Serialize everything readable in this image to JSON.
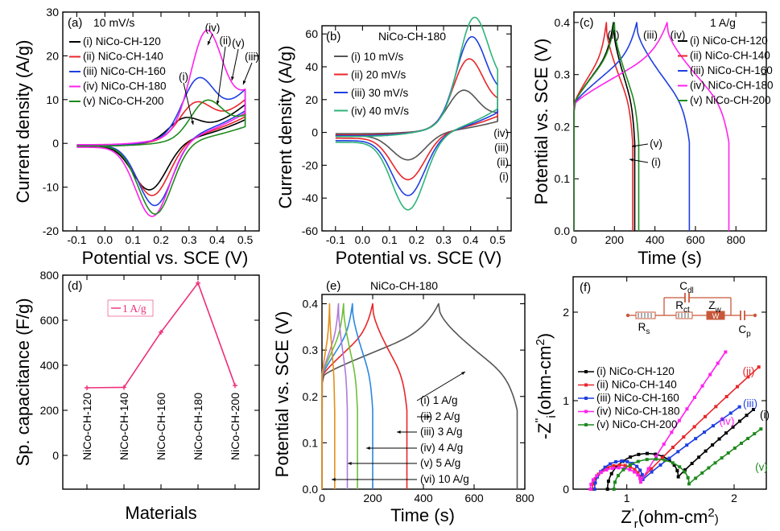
{
  "colors": {
    "black": "#000000",
    "red": "#e8262a",
    "blue": "#1f3fe0",
    "magenta": "#ff22ee",
    "green": "#1f8a1f",
    "gray": "#555555",
    "pink": "#ee2e79",
    "teal_b": "#2eb37a",
    "lightblue": "#2a88e0",
    "lightgreen": "#6fbf3a",
    "purple": "#b07ad8",
    "orange": "#e0901a",
    "circuit": "#c8583a"
  },
  "chart_data": [
    {
      "id": "a",
      "type": "line",
      "panel_label": "(a)",
      "note": "10 mV/s",
      "xlabel": "Potential vs. SCE (V)",
      "ylabel": "Current density (A/g)",
      "xlim": [
        -0.15,
        0.55
      ],
      "ylim": [
        -20,
        30
      ],
      "xticks": [
        -0.1,
        0.0,
        0.1,
        0.2,
        0.3,
        0.4,
        0.5
      ],
      "xtick_labels": [
        "-0.1",
        "0.0",
        "0.1",
        "0.2",
        "0.3",
        "0.4",
        "0.5"
      ],
      "yticks": [
        -20,
        -10,
        0,
        10,
        20,
        30
      ],
      "ytick_labels": [
        "-20",
        "-10",
        "0",
        "10",
        "20",
        "30"
      ],
      "legend": [
        "(i) NiCo-CH-120",
        "(ii) NiCo-CH-140",
        "(iii) NiCo-CH-160",
        "(iv) NiCo-CH-180",
        "(v) NiCo-CH-200"
      ],
      "annotations": [
        "(i)",
        "(ii)",
        "(iii)",
        "(iv)",
        "(v)"
      ],
      "series": [
        {
          "name": "(i) NiCo-CH-120",
          "color_key": "black",
          "ox": 0.28,
          "oy": 4.2,
          "rx": 0.16,
          "ry": -10.5,
          "end": 12.0,
          "startOx": -0.6,
          "startRed": -0.6
        },
        {
          "name": "(ii) NiCo-CH-140",
          "color_key": "red",
          "ox": 0.32,
          "oy": 6.5,
          "rx": 0.17,
          "ry": -12.0,
          "end": 13.5,
          "startOx": -0.5,
          "startRed": -0.5
        },
        {
          "name": "(iii) NiCo-CH-160",
          "color_key": "blue",
          "ox": 0.33,
          "oy": 11.0,
          "rx": 0.18,
          "ry": -14.5,
          "end": 16.5,
          "startOx": -0.5,
          "startRed": -0.5
        },
        {
          "name": "(iv) NiCo-CH-180",
          "color_key": "magenta",
          "ox": 0.36,
          "oy": 21.0,
          "rx": 0.17,
          "ry": -16.5,
          "end": 15.5,
          "startOx": -0.3,
          "startRed": -0.9
        },
        {
          "name": "(v) NiCo-CH-200",
          "color_key": "green",
          "ox": 0.36,
          "oy": 7.5,
          "rx": 0.18,
          "ry": -16.0,
          "end": 8.5,
          "startOx": -0.6,
          "startRed": -0.6
        }
      ]
    },
    {
      "id": "b",
      "type": "line",
      "panel_label": "(b)",
      "title": "NiCo-CH-180",
      "xlabel": "Potential vs. SCE (V)",
      "ylabel": "Current density (A/g)",
      "xlim": [
        -0.15,
        0.55
      ],
      "ylim": [
        -60,
        65
      ],
      "xticks": [
        -0.1,
        0.0,
        0.1,
        0.2,
        0.3,
        0.4,
        0.5
      ],
      "xtick_labels": [
        "-0.1",
        "0.0",
        "0.1",
        "0.2",
        "0.3",
        "0.4",
        "0.5"
      ],
      "yticks": [
        -60,
        -40,
        -20,
        0,
        20,
        40,
        60
      ],
      "ytick_labels": [
        "-60",
        "-40",
        "-20",
        "0",
        "20",
        "40",
        "60"
      ],
      "legend": [
        "(i) 10 mV/s",
        "(ii) 20 mV/s",
        "(iii) 30 mV/s",
        "(iv) 40 mV/s"
      ],
      "annotations": [
        "(iv)",
        "(iii)",
        "(ii)",
        "(i)"
      ],
      "series": [
        {
          "name": "(i) 10 mV/s",
          "color_key": "gray",
          "ox": 0.37,
          "oy": 21.0,
          "rx": 0.17,
          "ry": -15.5,
          "end": 15.0,
          "startOx": -0.8,
          "startRed": -2.0
        },
        {
          "name": "(ii) 20 mV/s",
          "color_key": "red",
          "ox": 0.39,
          "oy": 37.0,
          "rx": 0.17,
          "ry": -26.5,
          "end": 22.0,
          "startOx": -1.5,
          "startRed": -3.5
        },
        {
          "name": "(iii) 30 mV/s",
          "color_key": "blue",
          "ox": 0.4,
          "oy": 48.0,
          "rx": 0.17,
          "ry": -35.0,
          "end": 27.0,
          "startOx": -2.0,
          "startRed": -5.0
        },
        {
          "name": "(iv) 40 mV/s",
          "color_key": "teal_b",
          "ox": 0.41,
          "oy": 57.0,
          "rx": 0.17,
          "ry": -43.0,
          "end": 32.0,
          "startOx": -2.5,
          "startRed": -6.0
        }
      ]
    },
    {
      "id": "c",
      "type": "line",
      "panel_label": "(c)",
      "note": "1 A/g",
      "xlabel": "Time (s)",
      "ylabel": "Potential vs. SCE (V)",
      "xlim": [
        0,
        950
      ],
      "ylim": [
        0,
        0.42
      ],
      "xticks": [
        0,
        200,
        400,
        600,
        800
      ],
      "xtick_labels": [
        "0",
        "200",
        "400",
        "600",
        "800"
      ],
      "yticks": [
        0.0,
        0.1,
        0.2,
        0.3,
        0.4
      ],
      "ytick_labels": [
        "0.0",
        "0.1",
        "0.2",
        "0.3",
        "0.4"
      ],
      "legend": [
        "(i) NiCo-CH-120",
        "(ii) NiCo-CH-140",
        "(iii) NiCo-CH-160",
        "(iv) NiCo-CH-180",
        "(v) NiCo-CH-200"
      ],
      "annotations": [
        "(ii)",
        "(iii)",
        "(iv)",
        "(v)",
        "(i)"
      ],
      "series": [
        {
          "name": "(i) NiCo-CH-120",
          "color_key": "black",
          "tc": 195,
          "td": 300
        },
        {
          "name": "(ii) NiCo-CH-140",
          "color_key": "red",
          "tc": 160,
          "td": 290
        },
        {
          "name": "(iii) NiCo-CH-160",
          "color_key": "blue",
          "tc": 310,
          "td": 570
        },
        {
          "name": "(iv) NiCo-CH-180",
          "color_key": "magenta",
          "tc": 460,
          "td": 765
        },
        {
          "name": "(v) NiCo-CH-200",
          "color_key": "green",
          "tc": 200,
          "td": 320
        }
      ]
    },
    {
      "id": "d",
      "type": "line",
      "panel_label": "(d)",
      "xlabel": "Materials",
      "ylabel": "Sp. capacitance (F/g)",
      "ylim": [
        -150,
        800
      ],
      "yticks": [
        0,
        200,
        400,
        600,
        800
      ],
      "ytick_labels": [
        "0",
        "200",
        "400",
        "600",
        "800"
      ],
      "categories": [
        "NiCo-CH-120",
        "NiCo-CH-140",
        "NiCo-CH-160",
        "NiCo-CH-180",
        "NiCo-CH-200"
      ],
      "legend": [
        "1 A/g"
      ],
      "series": [
        {
          "name": "1 A/g",
          "color_key": "pink",
          "values": [
            300,
            302,
            547,
            765,
            310
          ]
        }
      ]
    },
    {
      "id": "e",
      "type": "line",
      "panel_label": "(e)",
      "title": "NiCo-CH-180",
      "xlabel": "Time (s)",
      "ylabel": "Potential vs. SCE (V)",
      "xlim": [
        0,
        800
      ],
      "ylim": [
        0,
        0.42
      ],
      "xticks": [
        0,
        200,
        400,
        600,
        800
      ],
      "xtick_labels": [
        "0",
        "200",
        "400",
        "600",
        "800"
      ],
      "yticks": [
        0.0,
        0.1,
        0.2,
        0.3,
        0.4
      ],
      "ytick_labels": [
        "0.0",
        "0.1",
        "0.2",
        "0.3",
        "0.4"
      ],
      "legend": [
        "(i) 1 A/g",
        "(ii) 2 A/g",
        "(iii) 3 A/g",
        "(iv) 4 A/g",
        "(v) 5 A/g",
        "(vi) 10 A/g"
      ],
      "series": [
        {
          "name": "(i) 1 A/g",
          "color_key": "gray",
          "tc": 460,
          "td": 770
        },
        {
          "name": "(ii) 2 A/g",
          "color_key": "red",
          "tc": 200,
          "td": 335
        },
        {
          "name": "(iii) 3 A/g",
          "color_key": "lightblue",
          "tc": 120,
          "td": 200
        },
        {
          "name": "(iv) 4 A/g",
          "color_key": "lightgreen",
          "tc": 85,
          "td": 140
        },
        {
          "name": "(v) 5 A/g",
          "color_key": "purple",
          "tc": 65,
          "td": 100
        },
        {
          "name": "(vi) 10 A/g",
          "color_key": "orange",
          "tc": 30,
          "td": 50
        }
      ]
    },
    {
      "id": "f",
      "type": "scatter",
      "panel_label": "(f)",
      "xlabel_main": "Z",
      "xlabel_sup": "'",
      "xlabel_sub": "r",
      "xlabel_unit": "(ohm-cm",
      "xlabel_unit_sup": "2",
      "xlabel_close": ")",
      "ylabel_main": "-Z",
      "ylabel_sup": "''",
      "ylabel_sub": "i",
      "ylabel_unit": "(ohm-cm",
      "ylabel_unit_sup": "2",
      "ylabel_close": ")",
      "xlim": [
        0.5,
        2.3
      ],
      "ylim": [
        0,
        2.4
      ],
      "xticks": [
        1,
        2
      ],
      "xtick_labels": [
        "1",
        "2"
      ],
      "yticks": [
        0,
        1,
        2
      ],
      "ytick_labels": [
        "0",
        "1",
        "2"
      ],
      "legend": [
        "(i) NiCo-CH-120",
        "(ii) NiCo-CH-140",
        "(iii) NiCo-CH-160",
        "(iv) NiCo-CH-180",
        "(v) NiCo-CH-200"
      ],
      "annotations": [
        "(iv)",
        "(ii)",
        "(iii)",
        "(i)",
        "(v)"
      ],
      "circuit_labels": {
        "cdl_main": "C",
        "cdl_sub": "dl",
        "rs_main": "R",
        "rs_sub": "s",
        "rct_main": "R",
        "rct_sub": "ct",
        "zw_main": "Z",
        "zw_sub": "w",
        "w": "W",
        "cp_main": "C",
        "cp_sub": "p"
      },
      "series": [
        {
          "name": "(i) NiCo-CH-120",
          "color_key": "black",
          "x0": 0.82,
          "x1": 1.48,
          "h": 0.33,
          "y1": 0.14,
          "xEnd": 2.18,
          "yEnd": 0.9
        },
        {
          "name": "(ii) NiCo-CH-140",
          "color_key": "red",
          "x0": 0.68,
          "x1": 1.13,
          "h": 0.22,
          "y1": 0.1,
          "xEnd": 2.23,
          "yEnd": 1.38
        },
        {
          "name": "(iii) NiCo-CH-160",
          "color_key": "blue",
          "x0": 0.7,
          "x1": 1.15,
          "h": 0.26,
          "y1": 0.11,
          "xEnd": 2.05,
          "yEnd": 0.93
        },
        {
          "name": "(iv) NiCo-CH-180",
          "color_key": "magenta",
          "x0": 0.66,
          "x1": 1.13,
          "h": 0.2,
          "y1": 0.08,
          "xEnd": 1.92,
          "yEnd": 1.55
        },
        {
          "name": "(v) NiCo-CH-200",
          "color_key": "green",
          "x0": 0.88,
          "x1": 1.58,
          "h": 0.31,
          "y1": 0.06,
          "xEnd": 2.25,
          "yEnd": 0.68
        }
      ]
    }
  ]
}
